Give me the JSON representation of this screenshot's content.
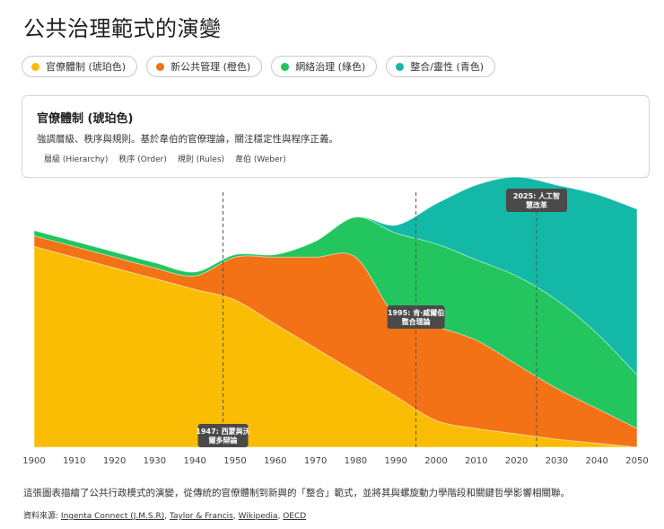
{
  "title": "公共治理範式的演變",
  "legend": [
    {
      "label": "官僚體制 (琥珀色)",
      "color": "#FBBC04"
    },
    {
      "label": "新公共管理 (橙色)",
      "color": "#F47216"
    },
    {
      "label": "網絡治理 (綠色)",
      "color": "#22C55E"
    },
    {
      "label": "整合/靈性 (青色)",
      "color": "#14B8A6"
    }
  ],
  "info": {
    "title": "官僚體制 (琥珀色)",
    "description": "強調層級、秩序與規則。基於韋伯的官僚理論，關注穩定性與程序正義。",
    "tags": [
      "層級 (Hierarchy)",
      "秩序 (Order)",
      "規則 (Rules)",
      "韋伯 (Weber)"
    ]
  },
  "chart_data": {
    "type": "area",
    "stacked": true,
    "x": [
      1900,
      1910,
      1920,
      1930,
      1940,
      1950,
      1960,
      1970,
      1980,
      1990,
      2000,
      2010,
      2020,
      2030,
      2040,
      2050
    ],
    "xlim": [
      1900,
      2050
    ],
    "ylim": [
      0,
      100
    ],
    "x_ticks": [
      1900,
      1910,
      1920,
      1930,
      1940,
      1950,
      1960,
      1970,
      1980,
      1990,
      2000,
      2010,
      2020,
      2030,
      2040,
      2050
    ],
    "series": [
      {
        "name": "官僚體制 (琥珀色)",
        "color": "#FBBC04",
        "values": [
          75,
          71,
          67,
          63,
          59,
          55,
          46,
          37,
          28,
          19,
          10,
          7,
          5,
          3,
          1.5,
          0
        ]
      },
      {
        "name": "新公共管理 (橙色)",
        "color": "#F47216",
        "values": [
          4,
          4,
          4,
          4,
          5,
          16,
          25,
          34,
          43,
          30,
          35,
          33,
          26,
          19,
          13,
          7
        ]
      },
      {
        "name": "網絡治理 (綠色)",
        "color": "#22C55E",
        "values": [
          2,
          2,
          2,
          2,
          1.5,
          1,
          1,
          6,
          15,
          31,
          31,
          30,
          33,
          33,
          28,
          20
        ]
      },
      {
        "name": "整合/靈性 (青色)",
        "color": "#14B8A6",
        "values": [
          0,
          0,
          0,
          0,
          0,
          0,
          0,
          0,
          0,
          3,
          15,
          28,
          37,
          43,
          52,
          62
        ]
      }
    ],
    "annotations": [
      {
        "x": 1947,
        "label": "1947: 西蒙與沃爾多辯論"
      },
      {
        "x": 1995,
        "label": "1995: 肯·威爾伯整合理論"
      },
      {
        "x": 2025,
        "label": "2025: 人工智慧改革"
      }
    ]
  },
  "caption": "這張圖表描繪了公共行政模式的演變，從傳統的官僚體制到新興的「整合」範式，並將其與螺旋動力學階段和關鍵哲學影響相關聯。",
  "sources": {
    "prefix": "資料來源:",
    "links": [
      "Ingenta Connect (J.M.S.R)",
      "Taylor & Francis",
      "Wikipedia",
      "OECD"
    ]
  }
}
